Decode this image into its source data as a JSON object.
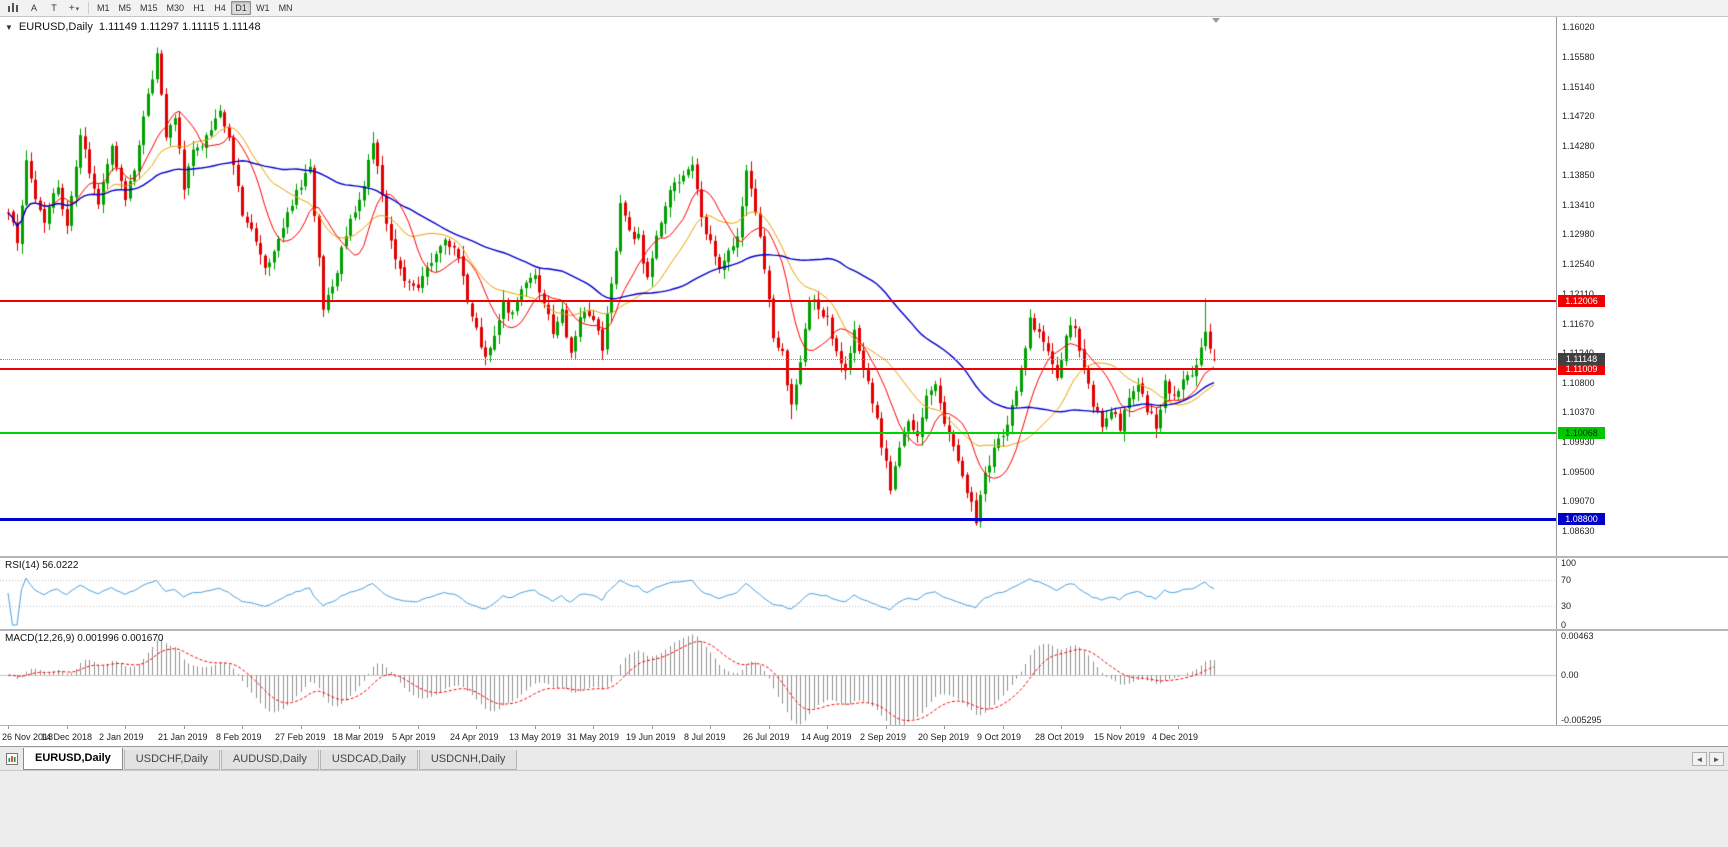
{
  "colors": {
    "bull": "#00A000",
    "bear": "#E00000",
    "ma_fast": "#FF0000",
    "ma_mid": "#E8A200",
    "ma_slow": "#0000C8",
    "rsi_line": "#4DA0DD",
    "rsi_level": "#C0C0C0",
    "macd_hist": "#909090",
    "macd_signal": "#FF0000",
    "macd_zero": "#C8C8C8"
  },
  "toolbar": {
    "cursor_label": "A",
    "text_label": "T",
    "crosshair_glyph": "+",
    "dropdown_glyph": "▾",
    "timeframes": [
      "M1",
      "M5",
      "M15",
      "M30",
      "H1",
      "H4",
      "D1",
      "W1",
      "MN"
    ],
    "active_timeframe": "D1"
  },
  "chart": {
    "symbol_title": "EURUSD,Daily",
    "ohlc_text": "1.11149 1.11297 1.11115 1.11148",
    "open": "1.11149",
    "high": "1.11297",
    "low": "1.11115",
    "close": "1.11148",
    "collapse_glyph": "▼",
    "scale": {
      "max": 1.1602,
      "min": 1.0863
    },
    "price_axis_labels": [
      "1.16020",
      "1.15580",
      "1.15140",
      "1.14720",
      "1.14280",
      "1.13850",
      "1.13410",
      "1.12980",
      "1.12540",
      "1.12110",
      "1.11670",
      "1.11240",
      "1.10800",
      "1.10370",
      "1.09930",
      "1.09500",
      "1.09070",
      "1.08630"
    ],
    "price_markers": [
      {
        "value": "1.12006",
        "color": "#F00000",
        "text_color": "#ffffff"
      },
      {
        "value": "1.11009",
        "color": "#F00000",
        "text_color": "#ffffff"
      },
      {
        "value": "1.11148",
        "color": "#404040",
        "text_color": "#ffffff"
      },
      {
        "value": "1.10068",
        "color": "#00C800",
        "text_color": "#00320a"
      },
      {
        "value": "1.08800",
        "color": "#0000C8",
        "text_color": "#ffffff"
      }
    ],
    "hlines": [
      {
        "name": "resistance-line-upper",
        "value": 1.12006,
        "color": "#F00000",
        "thickness": 2
      },
      {
        "name": "resistance-line-lower",
        "value": 1.11009,
        "color": "#F00000",
        "thickness": 2
      },
      {
        "name": "support-line-green",
        "value": 1.10068,
        "color": "#00D400",
        "thickness": 2
      },
      {
        "name": "support-line-blue",
        "value": 1.088,
        "color": "#0000D2",
        "thickness": 3
      }
    ],
    "current_price": 1.11148
  },
  "rsi": {
    "label": "RSI(14) 56.0222",
    "value": "56.0222",
    "period": 14,
    "levels": [
      70,
      30
    ],
    "axis_labels": [
      "100",
      "70",
      "30",
      "0"
    ]
  },
  "macd": {
    "label": "MACD(12,26,9) 0.001996 0.001670",
    "main_value": "0.001996",
    "signal_value": "0.001670",
    "axis_labels": {
      "top": "0.00463",
      "zero": "0.00",
      "bottom": "-0.005295"
    },
    "scale_max": 0.00463,
    "scale_min": -0.005295
  },
  "date_axis": [
    "26 Nov 2018",
    "14 Dec 2018",
    "2 Jan 2019",
    "21 Jan 2019",
    "8 Feb 2019",
    "27 Feb 2019",
    "18 Mar 2019",
    "5 Apr 2019",
    "24 Apr 2019",
    "13 May 2019",
    "31 May 2019",
    "19 Jun 2019",
    "8 Jul 2019",
    "26 Jul 2019",
    "14 Aug 2019",
    "2 Sep 2019",
    "20 Sep 2019",
    "9 Oct 2019",
    "28 Oct 2019",
    "15 Nov 2019",
    "4 Dec 2019"
  ],
  "tabs": {
    "items": [
      "EURUSD,Daily",
      "USDCHF,Daily",
      "AUDUSD,Daily",
      "USDCAD,Daily",
      "USDCNH,Daily"
    ],
    "active": "EURUSD,Daily",
    "scroll_left_glyph": "◄",
    "scroll_right_glyph": "►"
  },
  "chart_data": {
    "type": "candlestick",
    "symbol": "EURUSD",
    "timeframe": "Daily",
    "bars": 269,
    "bar_spacing_px": 4.5,
    "ma_periods": {
      "fast": 10,
      "mid": 21,
      "slow": 50
    },
    "last_bar": {
      "open": 1.11149,
      "high": 1.11297,
      "low": 1.11115,
      "close": 1.11148
    },
    "extremes": [
      [
        33,
        "high",
        1.1572
      ],
      [
        70,
        "low",
        1.1177
      ],
      [
        81,
        "high",
        1.1448
      ],
      [
        106,
        "low",
        1.1106
      ],
      [
        174,
        "low",
        1.1027
      ],
      [
        215,
        "low",
        1.0879
      ],
      [
        266,
        "high",
        1.1204
      ]
    ],
    "waypoints": [
      [
        0,
        1.133
      ],
      [
        2,
        1.1292
      ],
      [
        4,
        1.14
      ],
      [
        6,
        1.1352
      ],
      [
        8,
        1.132
      ],
      [
        11,
        1.1372
      ],
      [
        13,
        1.1308
      ],
      [
        16,
        1.1442
      ],
      [
        18,
        1.139
      ],
      [
        20,
        1.1348
      ],
      [
        23,
        1.1432
      ],
      [
        26,
        1.1342
      ],
      [
        28,
        1.1398
      ],
      [
        31,
        1.1502
      ],
      [
        33,
        1.1562
      ],
      [
        35,
        1.1442
      ],
      [
        37,
        1.1472
      ],
      [
        39,
        1.1368
      ],
      [
        41,
        1.1418
      ],
      [
        44,
        1.1442
      ],
      [
        47,
        1.1482
      ],
      [
        49,
        1.1442
      ],
      [
        52,
        1.1328
      ],
      [
        55,
        1.1292
      ],
      [
        57,
        1.1242
      ],
      [
        60,
        1.1292
      ],
      [
        62,
        1.1332
      ],
      [
        65,
        1.1372
      ],
      [
        67,
        1.1398
      ],
      [
        70,
        1.1188
      ],
      [
        73,
        1.1248
      ],
      [
        75,
        1.1302
      ],
      [
        78,
        1.1342
      ],
      [
        81,
        1.1438
      ],
      [
        83,
        1.1352
      ],
      [
        85,
        1.1282
      ],
      [
        88,
        1.1232
      ],
      [
        91,
        1.1222
      ],
      [
        94,
        1.1262
      ],
      [
        97,
        1.1292
      ],
      [
        100,
        1.1262
      ],
      [
        102,
        1.1202
      ],
      [
        104,
        1.1158
      ],
      [
        106,
        1.1112
      ],
      [
        108,
        1.1152
      ],
      [
        110,
        1.1202
      ],
      [
        112,
        1.1178
      ],
      [
        114,
        1.1222
      ],
      [
        117,
        1.1232
      ],
      [
        119,
        1.1202
      ],
      [
        121,
        1.1158
      ],
      [
        123,
        1.1182
      ],
      [
        125,
        1.1118
      ],
      [
        127,
        1.1182
      ],
      [
        130,
        1.1168
      ],
      [
        132,
        1.1132
      ],
      [
        134,
        1.1222
      ],
      [
        136,
        1.1338
      ],
      [
        138,
        1.1302
      ],
      [
        140,
        1.1292
      ],
      [
        142,
        1.1232
      ],
      [
        144,
        1.1292
      ],
      [
        146,
        1.1342
      ],
      [
        148,
        1.1372
      ],
      [
        150,
        1.1382
      ],
      [
        152,
        1.1398
      ],
      [
        154,
        1.1322
      ],
      [
        156,
        1.1288
      ],
      [
        158,
        1.1252
      ],
      [
        160,
        1.1272
      ],
      [
        162,
        1.1288
      ],
      [
        164,
        1.1388
      ],
      [
        166,
        1.1332
      ],
      [
        168,
        1.1252
      ],
      [
        170,
        1.1152
      ],
      [
        172,
        1.1122
      ],
      [
        174,
        1.1042
      ],
      [
        176,
        1.1108
      ],
      [
        178,
        1.1202
      ],
      [
        180,
        1.1192
      ],
      [
        182,
        1.1172
      ],
      [
        184,
        1.1122
      ],
      [
        186,
        1.1092
      ],
      [
        188,
        1.1152
      ],
      [
        190,
        1.1102
      ],
      [
        192,
        1.1052
      ],
      [
        194,
        1.0992
      ],
      [
        196,
        1.0928
      ],
      [
        198,
        1.0986
      ],
      [
        200,
        1.1028
      ],
      [
        202,
        1.1002
      ],
      [
        204,
        1.1062
      ],
      [
        206,
        1.1074
      ],
      [
        208,
        1.1018
      ],
      [
        210,
        1.0992
      ],
      [
        212,
        1.0942
      ],
      [
        215,
        1.088
      ],
      [
        217,
        1.0942
      ],
      [
        219,
        1.0982
      ],
      [
        221,
        1.1002
      ],
      [
        223,
        1.1042
      ],
      [
        225,
        1.1102
      ],
      [
        227,
        1.1172
      ],
      [
        229,
        1.1152
      ],
      [
        231,
        1.1122
      ],
      [
        233,
        1.1082
      ],
      [
        235,
        1.1152
      ],
      [
        237,
        1.1166
      ],
      [
        239,
        1.1102
      ],
      [
        241,
        1.1052
      ],
      [
        243,
        1.1016
      ],
      [
        245,
        1.1042
      ],
      [
        247,
        1.1016
      ],
      [
        249,
        1.1062
      ],
      [
        251,
        1.1082
      ],
      [
        253,
        1.1042
      ],
      [
        255,
        1.1018
      ],
      [
        257,
        1.1078
      ],
      [
        259,
        1.1062
      ],
      [
        261,
        1.1082
      ],
      [
        263,
        1.1094
      ],
      [
        265,
        1.113
      ],
      [
        266,
        1.1162
      ],
      [
        267,
        1.1126
      ],
      [
        268,
        1.11148
      ]
    ]
  }
}
